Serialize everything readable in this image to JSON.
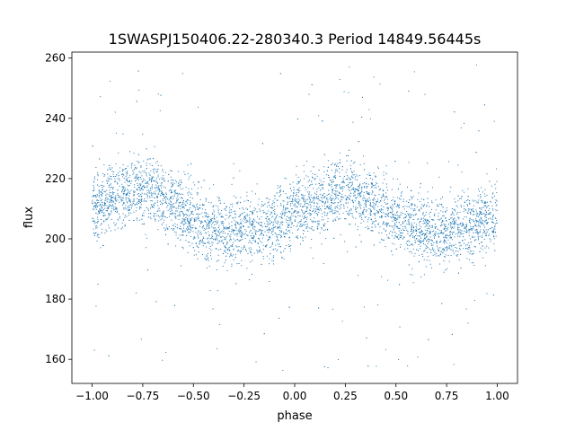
{
  "chart_data": {
    "type": "scatter",
    "title": "1SWASPJ150406.22-280340.3 Period 14849.56445s",
    "xlabel": "phase",
    "ylabel": "flux",
    "xlim": [
      -1.1,
      1.1
    ],
    "ylim": [
      152,
      262
    ],
    "xticks": [
      -1.0,
      -0.75,
      -0.5,
      -0.25,
      0.0,
      0.25,
      0.5,
      0.75,
      1.0
    ],
    "xtick_labels": [
      "−1.00",
      "−0.75",
      "−0.50",
      "−0.25",
      "0.00",
      "0.25",
      "0.50",
      "0.75",
      "1.00"
    ],
    "yticks": [
      160,
      180,
      200,
      220,
      240,
      260
    ],
    "ytick_labels": [
      "160",
      "180",
      "200",
      "220",
      "240",
      "260"
    ],
    "grid": false,
    "marker_color": "#1f77b4",
    "series": [
      {
        "trend": {
          "phase": [
            -1.0,
            -0.9,
            -0.8,
            -0.75,
            -0.7,
            -0.6,
            -0.5,
            -0.4,
            -0.3,
            -0.25,
            -0.2,
            -0.1,
            0.0,
            0.1,
            0.2,
            0.25,
            0.3,
            0.4,
            0.5,
            0.6,
            0.7,
            0.75,
            0.8,
            0.9,
            1.0
          ],
          "flux": [
            209,
            214,
            216,
            216.5,
            216,
            212,
            206,
            203,
            202,
            202.5,
            203,
            205,
            208,
            211,
            215,
            216.5,
            216,
            212,
            206,
            203,
            202,
            202,
            203,
            205,
            208
          ]
        },
        "scatter_sigma": 5.5,
        "outlier_range": [
          156,
          258
        ],
        "n_points": 5200
      }
    ]
  }
}
